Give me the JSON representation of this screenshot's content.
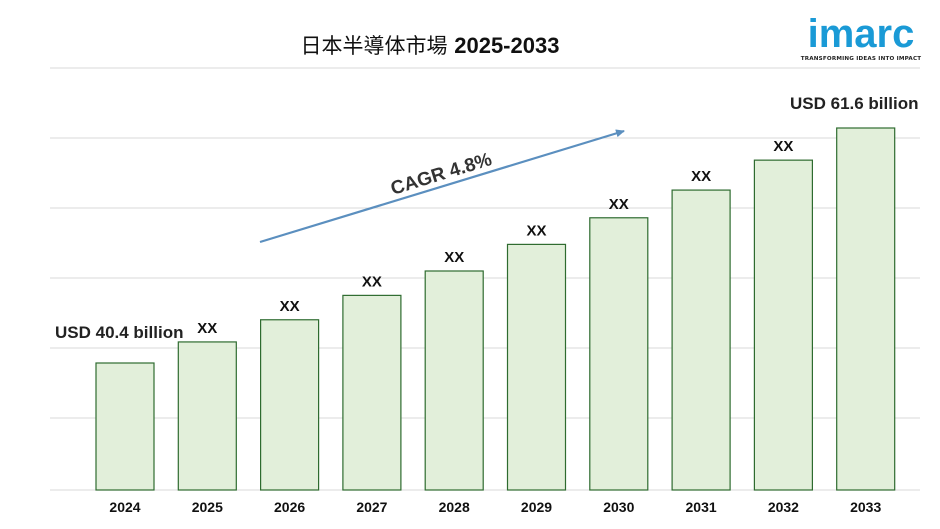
{
  "chart_data": {
    "type": "bar",
    "title": "日本半導体市場",
    "title_years": "2025-2033",
    "categories": [
      "2024",
      "2025",
      "2026",
      "2027",
      "2028",
      "2029",
      "2030",
      "2031",
      "2032",
      "2033"
    ],
    "values": [
      40.4,
      42.3,
      44.3,
      46.5,
      48.7,
      51.1,
      53.5,
      56.0,
      58.7,
      61.6
    ],
    "bar_labels": [
      "",
      "XX",
      "XX",
      "XX",
      "XX",
      "XX",
      "XX",
      "XX",
      "XX",
      ""
    ],
    "first_value_label": "USD 40.4 billion",
    "last_value_label": "USD 61.6 billion",
    "cagr_label": "CAGR 4.8%",
    "grid": true,
    "colors": {
      "bar_fill": "#e2efda",
      "bar_stroke": "#2e6b2f",
      "arrow": "#5b8fbf",
      "grid": "#d9d9d9"
    }
  },
  "logo": {
    "word": "imarc",
    "tagline": "TRANSFORMING IDEAS INTO IMPACT",
    "color": "#1a9ad6"
  }
}
